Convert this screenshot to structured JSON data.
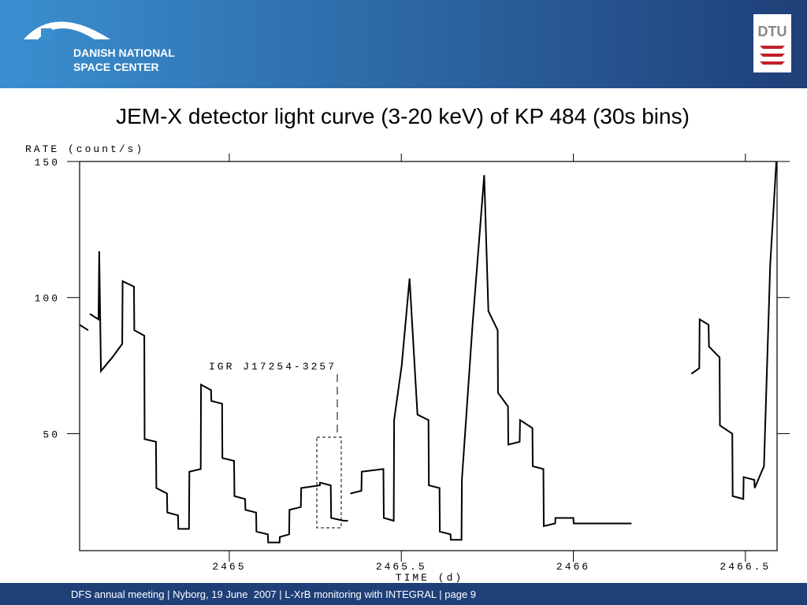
{
  "header": {
    "org_line1": "DANISH NATIONAL",
    "org_line2": "SPACE CENTER",
    "logo_right": "DTU"
  },
  "chart_data": {
    "type": "line",
    "title": "JEM-X detector light curve (3-20 keV) of KP 484 (30s bins)",
    "y_label": "RATE (count/s)",
    "x_label": "TIME (d)",
    "annotation": "IGR J17254-3257",
    "x": [
      2464.565,
      2464.59,
      2464.592,
      2464.595,
      2464.62,
      2464.622,
      2464.627,
      2464.66,
      2464.689,
      2464.69,
      2464.723,
      2464.724,
      2464.753,
      2464.754,
      2464.787,
      2464.788,
      2464.819,
      2464.82,
      2464.851,
      2464.852,
      2464.883,
      2464.884,
      2464.917,
      2464.918,
      2464.947,
      2464.948,
      2464.979,
      2464.98,
      2465.014,
      2465.015,
      2465.046,
      2465.047,
      2465.078,
      2465.079,
      2465.112,
      2465.113,
      2465.146,
      2465.147,
      2465.174,
      2465.175,
      2465.208,
      2465.209,
      2465.263,
      2465.264,
      2465.295,
      2465.296,
      2465.332,
      2465.345,
      2465.348,
      2465.352,
      2465.384,
      2465.385,
      2465.448,
      2465.449,
      2465.478,
      2465.479,
      2465.501,
      2465.524,
      2465.547,
      2465.579,
      2465.58,
      2465.611,
      2465.612,
      2465.643,
      2465.644,
      2465.675,
      2465.676,
      2465.707,
      2465.741,
      2465.753,
      2465.78,
      2465.781,
      2465.81,
      2465.811,
      2465.844,
      2465.845,
      2465.881,
      2465.882,
      2465.913,
      2465.914,
      2465.947,
      2465.948,
      2466.0,
      2466.001,
      2466.169,
      2466.17,
      2466.343,
      2466.366,
      2466.367,
      2466.393,
      2466.394,
      2466.425,
      2466.426,
      2466.462,
      2466.463,
      2466.494,
      2466.495,
      2466.526,
      2466.527,
      2466.554,
      2466.572,
      2466.59
    ],
    "values": [
      90,
      88,
      null,
      94,
      92,
      117,
      73,
      78,
      83,
      106,
      104,
      88,
      86,
      48,
      47,
      30,
      28,
      21,
      20,
      15,
      15,
      36,
      37,
      68,
      66,
      62,
      61,
      41,
      40,
      27,
      26,
      22,
      21,
      14,
      13,
      10,
      10,
      12,
      13,
      22,
      23,
      30,
      31,
      32,
      31,
      19,
      18,
      18,
      null,
      28,
      29,
      36,
      37,
      19,
      18,
      55,
      75,
      107,
      57,
      55,
      31,
      30,
      14,
      13,
      11,
      11,
      33,
      90,
      145,
      95,
      88,
      65,
      60,
      46,
      47,
      55,
      52,
      38,
      37,
      16,
      17,
      19,
      19,
      17,
      17,
      null,
      72,
      74,
      92,
      90,
      82,
      78,
      53,
      50,
      27,
      26,
      34,
      33,
      30,
      38,
      112,
      150
    ],
    "color": "#000000",
    "xlim": [
      2464.565,
      2466.592
    ],
    "ylim": [
      7,
      150
    ],
    "xticks": [
      2465,
      2465.5,
      2466,
      2466.5
    ],
    "yticks": [
      50,
      100,
      150
    ],
    "grid": false
  },
  "footer": {
    "text": "DFS annual meeting | Nyborg, 19 June  2007 | L-XrB monitoring with INTEGRAL | page 9"
  }
}
